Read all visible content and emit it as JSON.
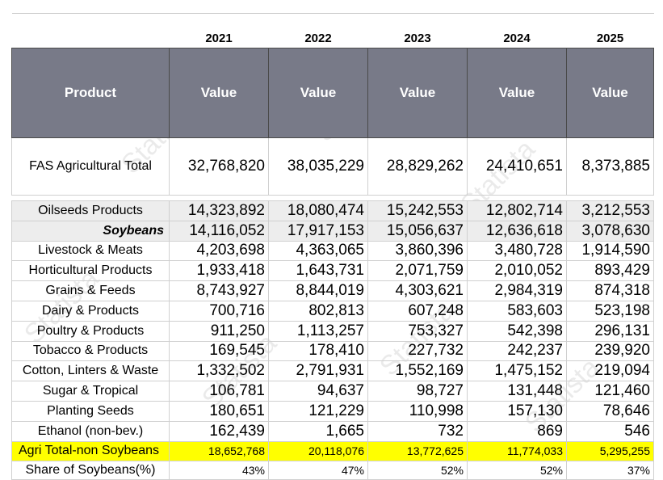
{
  "watermark": "Statista",
  "years": [
    "2021",
    "2022",
    "2023",
    "2024",
    "2025"
  ],
  "header": {
    "product": "Product",
    "value": "Value"
  },
  "total": {
    "label": "FAS Agricultural Total",
    "values": [
      "32,768,820",
      "38,035,229",
      "28,829,262",
      "24,410,651",
      "8,373,885"
    ]
  },
  "rows": [
    {
      "label": "Oilseeds  Products",
      "values": [
        "14,323,892",
        "18,080,474",
        "15,242,553",
        "12,802,714",
        "3,212,553"
      ]
    },
    {
      "label": "Soybeans",
      "values": [
        "14,116,052",
        "17,917,153",
        "15,056,637",
        "12,636,618",
        "3,078,630"
      ]
    },
    {
      "label": "Livestock & Meats",
      "values": [
        "4,203,698",
        "4,363,065",
        "3,860,396",
        "3,480,728",
        "1,914,590"
      ]
    },
    {
      "label": "Horticultural Products",
      "values": [
        "1,933,418",
        "1,643,731",
        "2,071,759",
        "2,010,052",
        "893,429"
      ]
    },
    {
      "label": "Grains & Feeds",
      "values": [
        "8,743,927",
        "8,844,019",
        "4,303,621",
        "2,984,319",
        "874,318"
      ]
    },
    {
      "label": "Dairy & Products",
      "values": [
        "700,716",
        "802,813",
        "607,248",
        "583,603",
        "523,198"
      ]
    },
    {
      "label": "Poultry & Products",
      "values": [
        "911,250",
        "1,113,257",
        "753,327",
        "542,398",
        "296,131"
      ]
    },
    {
      "label": "Tobacco & Products",
      "values": [
        "169,545",
        "178,410",
        "227,732",
        "242,237",
        "239,920"
      ]
    },
    {
      "label": "Cotton, Linters & Waste",
      "values": [
        "1,332,502",
        "2,791,931",
        "1,552,169",
        "1,475,152",
        "219,094"
      ]
    },
    {
      "label": "Sugar & Tropical",
      "values": [
        "106,781",
        "94,637",
        "98,727",
        "131,448",
        "121,460"
      ]
    },
    {
      "label": "Planting Seeds",
      "values": [
        "180,651",
        "121,229",
        "110,998",
        "157,130",
        "78,646"
      ]
    },
    {
      "label": "Ethanol (non-bev.)",
      "values": [
        "162,439",
        "1,665",
        "732",
        "869",
        "546"
      ]
    }
  ],
  "agri_non_soy": {
    "label": "Agri Total-non Soybeans",
    "values": [
      "18,652,768",
      "20,118,076",
      "13,772,625",
      "11,774,033",
      "5,295,255"
    ]
  },
  "share": {
    "label": "Share of Soybeans(%)",
    "values": [
      "43%",
      "47%",
      "52%",
      "52%",
      "37%"
    ]
  },
  "colors": {
    "header_bg": "#787a88",
    "highlight": "#ffff00",
    "shade": "#ededed"
  }
}
